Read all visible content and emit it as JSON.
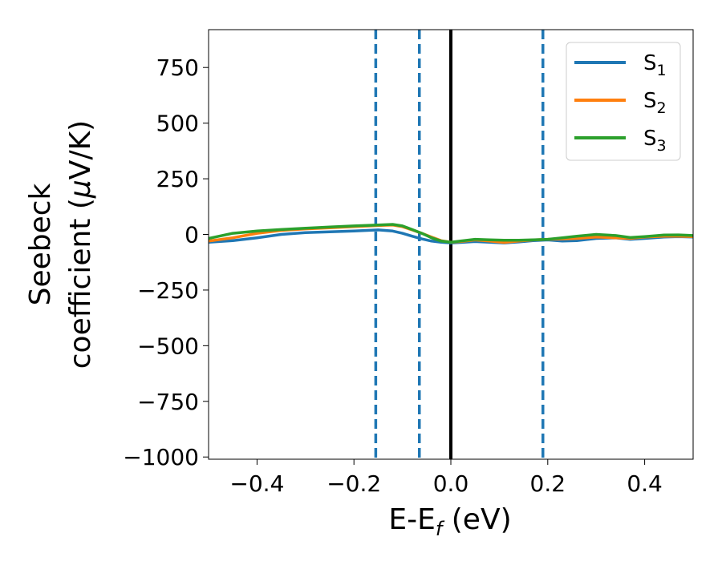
{
  "chart_data": {
    "type": "line",
    "xlabel": {
      "main": "E-E",
      "sub": "f",
      "unit": " (eV)"
    },
    "ylabel": {
      "line1": "Seebeck",
      "line2_pre": "coefficient  (",
      "line2_mu": "μ",
      "line2_post": "V/K)"
    },
    "xlim": [
      -0.5,
      0.5
    ],
    "ylim": [
      -1010,
      920
    ],
    "xticks": [
      {
        "value": -0.4,
        "label": "−0.4"
      },
      {
        "value": -0.2,
        "label": "−0.2"
      },
      {
        "value": 0.0,
        "label": "0.0"
      },
      {
        "value": 0.2,
        "label": "0.2"
      },
      {
        "value": 0.4,
        "label": "0.4"
      }
    ],
    "yticks": [
      {
        "value": 750,
        "label": "750"
      },
      {
        "value": 500,
        "label": "500"
      },
      {
        "value": 250,
        "label": "250"
      },
      {
        "value": 0,
        "label": "0"
      },
      {
        "value": -250,
        "label": "−250"
      },
      {
        "value": -500,
        "label": "−500"
      },
      {
        "value": -750,
        "label": "−750"
      },
      {
        "value": -1000,
        "label": "−1000"
      }
    ],
    "legend_position": "top-right",
    "series": [
      {
        "name": "S",
        "sub": "1",
        "color": "#1f77b4",
        "x": [
          -0.5,
          -0.45,
          -0.4,
          -0.35,
          -0.3,
          -0.25,
          -0.2,
          -0.15,
          -0.12,
          -0.1,
          -0.08,
          -0.06,
          -0.04,
          -0.02,
          0.0,
          0.02,
          0.05,
          0.08,
          0.11,
          0.14,
          0.17,
          0.2,
          0.23,
          0.26,
          0.3,
          0.34,
          0.37,
          0.4,
          0.44,
          0.47,
          0.5
        ],
        "y": [
          -35,
          -28,
          -15,
          0,
          8,
          12,
          15,
          20,
          15,
          5,
          -8,
          -20,
          -30,
          -35,
          -38,
          -36,
          -32,
          -35,
          -38,
          -34,
          -28,
          -25,
          -30,
          -28,
          -18,
          -15,
          -22,
          -18,
          -12,
          -10,
          -12
        ]
      },
      {
        "name": "S",
        "sub": "2",
        "color": "#ff7f0e",
        "x": [
          -0.5,
          -0.45,
          -0.4,
          -0.35,
          -0.3,
          -0.25,
          -0.2,
          -0.15,
          -0.12,
          -0.1,
          -0.08,
          -0.06,
          -0.04,
          -0.02,
          0.0,
          0.02,
          0.05,
          0.08,
          0.11,
          0.14,
          0.17,
          0.2,
          0.23,
          0.26,
          0.3,
          0.34,
          0.37,
          0.4,
          0.44,
          0.47,
          0.5
        ],
        "y": [
          -30,
          -15,
          5,
          18,
          25,
          30,
          35,
          40,
          42,
          35,
          20,
          5,
          -12,
          -28,
          -35,
          -32,
          -25,
          -30,
          -36,
          -30,
          -25,
          -22,
          -20,
          -18,
          -12,
          -15,
          -18,
          -12,
          -8,
          -8,
          -10
        ]
      },
      {
        "name": "S",
        "sub": "3",
        "color": "#2ca02c",
        "x": [
          -0.5,
          -0.45,
          -0.4,
          -0.35,
          -0.3,
          -0.25,
          -0.2,
          -0.15,
          -0.12,
          -0.1,
          -0.08,
          -0.06,
          -0.04,
          -0.02,
          0.0,
          0.02,
          0.05,
          0.08,
          0.11,
          0.14,
          0.17,
          0.2,
          0.23,
          0.26,
          0.3,
          0.34,
          0.37,
          0.4,
          0.44,
          0.47,
          0.5
        ],
        "y": [
          -18,
          5,
          15,
          22,
          28,
          33,
          38,
          42,
          45,
          38,
          22,
          5,
          -15,
          -30,
          -35,
          -30,
          -22,
          -24,
          -26,
          -26,
          -24,
          -22,
          -15,
          -8,
          0,
          -5,
          -14,
          -10,
          -3,
          -2,
          -5
        ]
      }
    ],
    "vlines": [
      {
        "x": -0.155,
        "color": "#1f77b4",
        "style": "dashed"
      },
      {
        "x": -0.065,
        "color": "#1f77b4",
        "style": "dashed"
      },
      {
        "x": 0.19,
        "color": "#1f77b4",
        "style": "dashed"
      },
      {
        "x": 0.0,
        "color": "#000000",
        "style": "solid"
      }
    ]
  }
}
